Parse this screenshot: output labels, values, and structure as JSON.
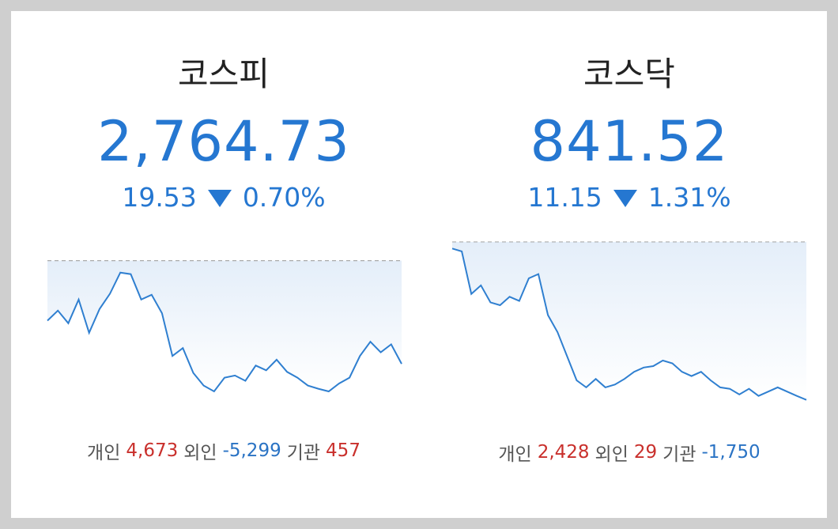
{
  "panels": [
    {
      "title": "코스피",
      "value": "2,764.73",
      "change": "19.53",
      "percent": "0.70%",
      "chart": {
        "type": "line",
        "color": "#2f7fd0",
        "reference": 2784.26,
        "ylim": [
          2758,
          2786
        ],
        "values": [
          2772.9,
          2774.8,
          2772.4,
          2776.9,
          2770.6,
          2775.1,
          2778.0,
          2782.0,
          2781.7,
          2776.9,
          2777.8,
          2774.3,
          2766.2,
          2767.7,
          2763.0,
          2760.6,
          2759.5,
          2762.1,
          2762.5,
          2761.5,
          2764.4,
          2763.5,
          2765.5,
          2763.2,
          2762.1,
          2760.6,
          2760.0,
          2759.5,
          2761.0,
          2762.1,
          2766.2,
          2768.9,
          2766.9,
          2768.4,
          2764.73
        ]
      },
      "investors": [
        {
          "label": "개인",
          "value": "4,673",
          "sign": "up"
        },
        {
          "label": "외인",
          "value": "-5,299",
          "sign": "down"
        },
        {
          "label": "기관",
          "value": "457",
          "sign": "up"
        }
      ]
    },
    {
      "title": "코스닥",
      "value": "841.52",
      "change": "11.15",
      "percent": "1.31%",
      "chart": {
        "type": "line",
        "color": "#2f7fd0",
        "reference": 852.67,
        "ylim": [
          841,
          853
        ],
        "values": [
          852.2,
          852.0,
          849.0,
          849.6,
          848.4,
          848.2,
          848.8,
          848.5,
          850.1,
          850.4,
          847.5,
          846.3,
          844.6,
          842.9,
          842.4,
          843.0,
          842.4,
          842.6,
          843.0,
          843.5,
          843.8,
          843.9,
          844.3,
          844.1,
          843.5,
          843.2,
          843.5,
          842.9,
          842.4,
          842.3,
          841.9,
          842.3,
          841.8,
          842.1,
          842.4,
          842.1,
          841.8,
          841.52
        ]
      },
      "investors": [
        {
          "label": "개인",
          "value": "2,428",
          "sign": "up"
        },
        {
          "label": "외인",
          "value": "29",
          "sign": "up"
        },
        {
          "label": "기관",
          "value": "-1,750",
          "sign": "down"
        }
      ]
    }
  ]
}
